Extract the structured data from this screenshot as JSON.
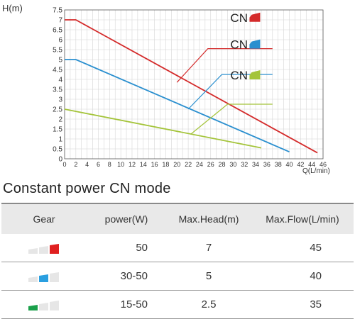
{
  "chart_data": {
    "type": "line",
    "ylabel": "H(m)",
    "xlabel": "Q(L/min)",
    "xlim": [
      0,
      46
    ],
    "ylim": [
      0,
      7.5
    ],
    "xticks": [
      0,
      2,
      4,
      6,
      8,
      10,
      12,
      14,
      16,
      18,
      20,
      22,
      24,
      26,
      28,
      30,
      32,
      34,
      36,
      38,
      40,
      42,
      44,
      46
    ],
    "yticks": [
      0,
      0.5,
      1,
      1.5,
      2,
      2.5,
      3,
      3.5,
      4,
      4.5,
      5,
      5.5,
      6,
      6.5,
      7,
      7.5
    ],
    "grid": true,
    "series": [
      {
        "color": "#d42b2b",
        "points": [
          [
            0,
            7.0
          ],
          [
            2,
            7.0
          ],
          [
            45,
            0.3
          ]
        ]
      },
      {
        "color": "#2a8fcf",
        "points": [
          [
            0,
            5.0
          ],
          [
            2,
            5.0
          ],
          [
            40,
            0.35
          ]
        ]
      },
      {
        "color": "#a4c43a",
        "points": [
          [
            0,
            2.5
          ],
          [
            35,
            0.55
          ]
        ]
      }
    ],
    "annotations": [
      {
        "text": "CN",
        "color": "#d42b2b",
        "label_x": 29.5,
        "label_y": 6.9,
        "knee": [
          25.5,
          5.55
        ],
        "end_x": 37,
        "target": [
          20,
          3.85
        ]
      },
      {
        "text": "CN",
        "color": "#2a8fcf",
        "label_x": 29.5,
        "label_y": 5.55,
        "knee": [
          28,
          4.25
        ],
        "end_x": 37,
        "target": [
          22,
          2.5
        ]
      },
      {
        "text": "CN",
        "color": "#a4c43a",
        "label_x": 29.5,
        "label_y": 4.0,
        "knee": [
          29,
          2.75
        ],
        "end_x": 37,
        "target": [
          22.5,
          1.25
        ]
      }
    ]
  },
  "section_title": "Constant power CN mode",
  "table": {
    "headers": [
      "Gear",
      "power(W)",
      "Max.Head(m)",
      "Max.Flow(L/min)"
    ],
    "rows": [
      {
        "gear_level": 3,
        "gear_color": "#e02020",
        "power": "50",
        "max_head": "7",
        "max_flow": "45"
      },
      {
        "gear_level": 2,
        "gear_color": "#2a9fe0",
        "power": "30-50",
        "max_head": "5",
        "max_flow": "40"
      },
      {
        "gear_level": 1,
        "gear_color": "#1aa04a",
        "power": "15-50",
        "max_head": "2.5",
        "max_flow": "35"
      }
    ]
  }
}
